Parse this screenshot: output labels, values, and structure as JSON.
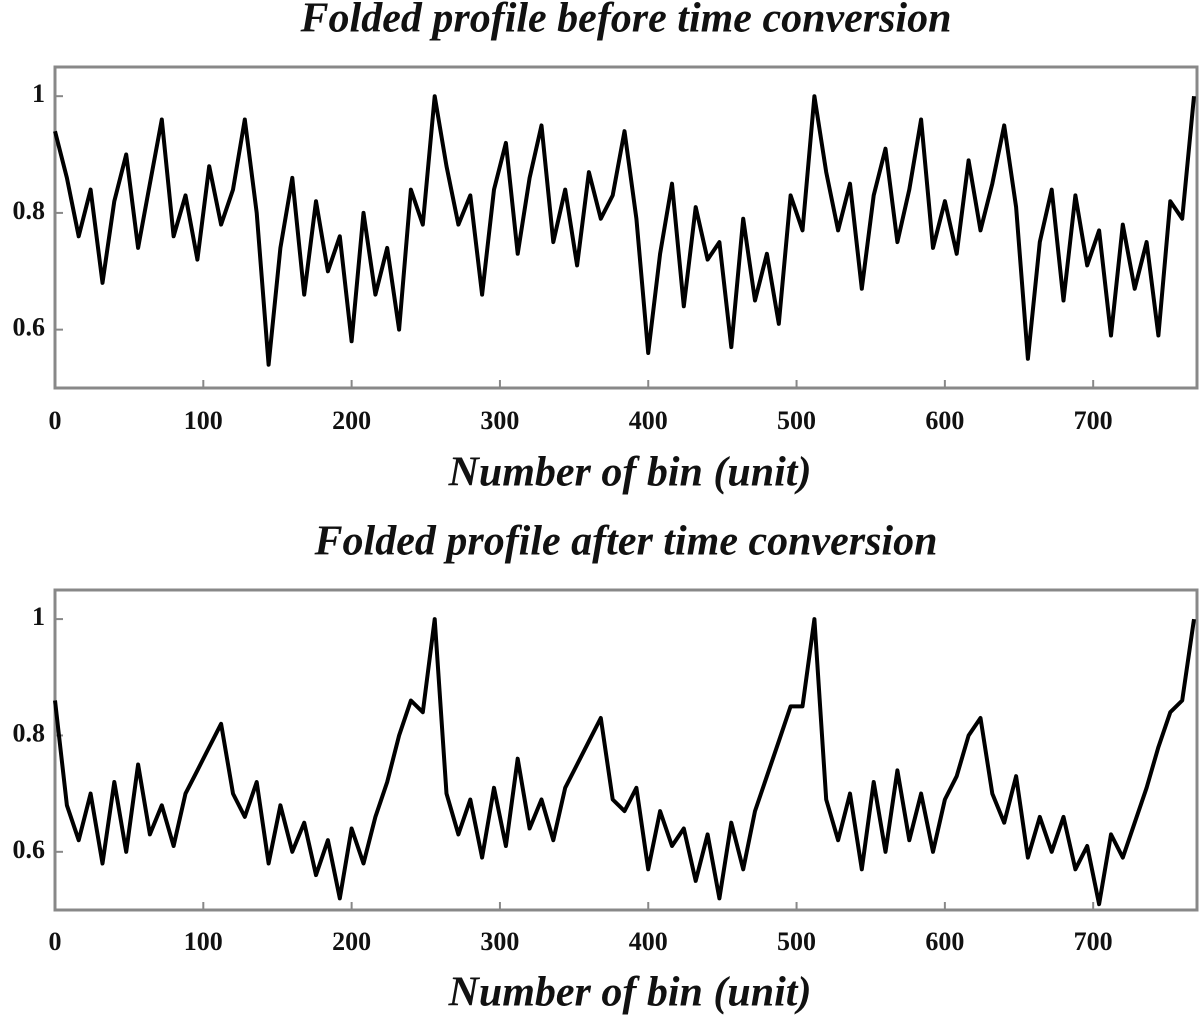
{
  "chart_data": [
    {
      "type": "line",
      "title": "Folded profile before time conversion",
      "xlabel": "Number of bin (unit)",
      "x": [
        0,
        8,
        16,
        24,
        32,
        40,
        48,
        56,
        64,
        72,
        80,
        88,
        96,
        104,
        112,
        120,
        128,
        136,
        144,
        152,
        160,
        168,
        176,
        184,
        192,
        200,
        208,
        216,
        224,
        232,
        240,
        248,
        256,
        264,
        272,
        280,
        288,
        296,
        304,
        312,
        320,
        328,
        336,
        344,
        352,
        360,
        368,
        376,
        384,
        392,
        400,
        408,
        416,
        424,
        432,
        440,
        448,
        456,
        464,
        472,
        480,
        488,
        496,
        504,
        512,
        520,
        528,
        536,
        544,
        552,
        560,
        568,
        576,
        584,
        592,
        600,
        608,
        616,
        624,
        632,
        640,
        648,
        656,
        664,
        672,
        680,
        688,
        696,
        704,
        712,
        720,
        728,
        736,
        744,
        752,
        760,
        768
      ],
      "series": [
        {
          "color": "#000000",
          "values": [
            0.94,
            0.86,
            0.76,
            0.84,
            0.68,
            0.82,
            0.9,
            0.74,
            0.85,
            0.96,
            0.76,
            0.83,
            0.72,
            0.88,
            0.78,
            0.84,
            0.96,
            0.8,
            0.54,
            0.74,
            0.86,
            0.66,
            0.82,
            0.7,
            0.76,
            0.58,
            0.8,
            0.66,
            0.74,
            0.6,
            0.84,
            0.78,
            1.0,
            0.88,
            0.78,
            0.83,
            0.66,
            0.84,
            0.92,
            0.73,
            0.86,
            0.95,
            0.75,
            0.84,
            0.71,
            0.87,
            0.79,
            0.83,
            0.94,
            0.79,
            0.56,
            0.73,
            0.85,
            0.64,
            0.81,
            0.72,
            0.75,
            0.57,
            0.79,
            0.65,
            0.73,
            0.61,
            0.83,
            0.77,
            1.0,
            0.87,
            0.77,
            0.85,
            0.67,
            0.83,
            0.91,
            0.75,
            0.84,
            0.96,
            0.74,
            0.82,
            0.73,
            0.89,
            0.77,
            0.85,
            0.95,
            0.81,
            0.55,
            0.75,
            0.84,
            0.65,
            0.83,
            0.71,
            0.77,
            0.59,
            0.78,
            0.67,
            0.75,
            0.59,
            0.82,
            0.79,
            1.0
          ]
        }
      ],
      "xlim": [
        0,
        770
      ],
      "ylim": [
        0.5,
        1.05
      ],
      "xticks": [
        0,
        100,
        200,
        300,
        400,
        500,
        600,
        700
      ],
      "yticks": [
        0.6,
        0.8,
        1
      ]
    },
    {
      "type": "line",
      "title": "Folded profile after time conversion",
      "xlabel": "Number of bin (unit)",
      "x": [
        0,
        8,
        16,
        24,
        32,
        40,
        48,
        56,
        64,
        72,
        80,
        88,
        96,
        104,
        112,
        120,
        128,
        136,
        144,
        152,
        160,
        168,
        176,
        184,
        192,
        200,
        208,
        216,
        224,
        232,
        240,
        248,
        256,
        264,
        272,
        280,
        288,
        296,
        304,
        312,
        320,
        328,
        336,
        344,
        352,
        360,
        368,
        376,
        384,
        392,
        400,
        408,
        416,
        424,
        432,
        440,
        448,
        456,
        464,
        472,
        480,
        488,
        496,
        504,
        512,
        520,
        528,
        536,
        544,
        552,
        560,
        568,
        576,
        584,
        592,
        600,
        608,
        616,
        624,
        632,
        640,
        648,
        656,
        664,
        672,
        680,
        688,
        696,
        704,
        712,
        720,
        728,
        736,
        744,
        752,
        760,
        768
      ],
      "series": [
        {
          "color": "#000000",
          "values": [
            0.86,
            0.68,
            0.62,
            0.7,
            0.58,
            0.72,
            0.6,
            0.75,
            0.63,
            0.68,
            0.61,
            0.7,
            0.74,
            0.78,
            0.82,
            0.7,
            0.66,
            0.72,
            0.58,
            0.68,
            0.6,
            0.65,
            0.56,
            0.62,
            0.52,
            0.64,
            0.58,
            0.66,
            0.72,
            0.8,
            0.86,
            0.84,
            1.0,
            0.7,
            0.63,
            0.69,
            0.59,
            0.71,
            0.61,
            0.76,
            0.64,
            0.69,
            0.62,
            0.71,
            0.75,
            0.79,
            0.83,
            0.69,
            0.67,
            0.71,
            0.57,
            0.67,
            0.61,
            0.64,
            0.55,
            0.63,
            0.52,
            0.65,
            0.57,
            0.67,
            0.73,
            0.79,
            0.85,
            0.85,
            1.0,
            0.69,
            0.62,
            0.7,
            0.57,
            0.72,
            0.6,
            0.74,
            0.62,
            0.7,
            0.6,
            0.69,
            0.73,
            0.8,
            0.83,
            0.7,
            0.65,
            0.73,
            0.59,
            0.66,
            0.6,
            0.66,
            0.57,
            0.61,
            0.51,
            0.63,
            0.59,
            0.65,
            0.71,
            0.78,
            0.84,
            0.86,
            1.0
          ]
        }
      ],
      "xlim": [
        0,
        770
      ],
      "ylim": [
        0.5,
        1.05
      ],
      "xticks": [
        0,
        100,
        200,
        300,
        400,
        500,
        600,
        700
      ],
      "yticks": [
        0.6,
        0.8,
        1
      ]
    }
  ]
}
